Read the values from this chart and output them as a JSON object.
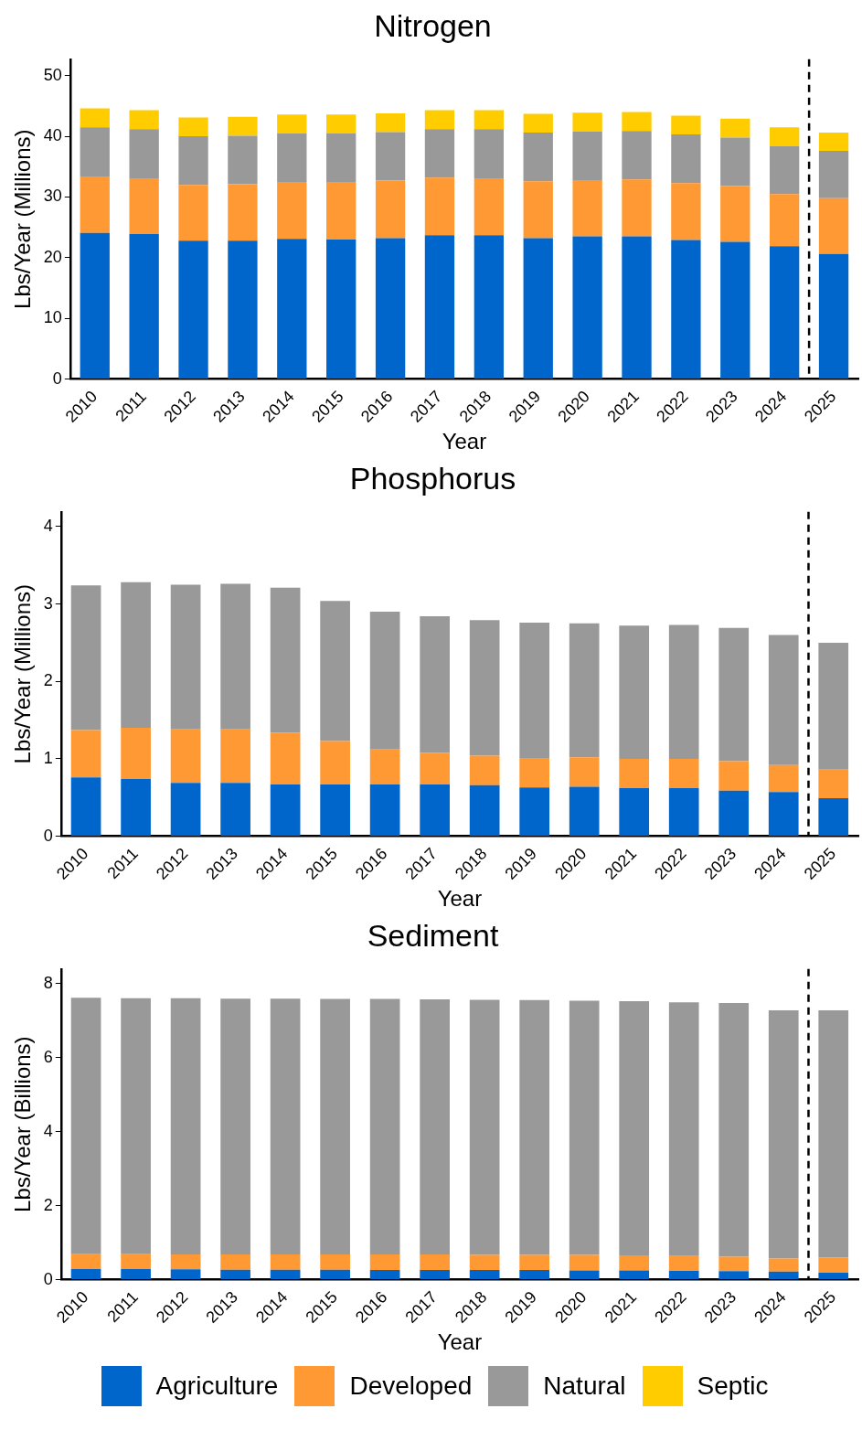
{
  "chart_data": [
    {
      "type": "bar",
      "title": "Nitrogen",
      "xlabel": "Year",
      "ylabel": "Lbs/Year (Millions)",
      "stacked": true,
      "legend": "bottom",
      "grid": false,
      "categories": [
        "2010",
        "2011",
        "2012",
        "2013",
        "2014",
        "2015",
        "2016",
        "2017",
        "2018",
        "2019",
        "2020",
        "2021",
        "2022",
        "2023",
        "2024",
        "2025"
      ],
      "ylim": [
        0,
        52.7
      ],
      "yticks": [
        0,
        10,
        20,
        30,
        40,
        50
      ],
      "series": [
        {
          "name": "Agriculture",
          "color": "#0066cc",
          "values": [
            24.1,
            23.9,
            22.8,
            22.8,
            23.1,
            23.0,
            23.2,
            23.7,
            23.7,
            23.2,
            23.5,
            23.5,
            22.9,
            22.6,
            21.9,
            20.6
          ]
        },
        {
          "name": "Developed",
          "color": "#ff9933",
          "values": [
            9.3,
            9.2,
            9.2,
            9.3,
            9.4,
            9.5,
            9.5,
            9.5,
            9.4,
            9.4,
            9.3,
            9.4,
            9.4,
            9.2,
            8.6,
            9.2
          ]
        },
        {
          "name": "Natural",
          "color": "#999999",
          "values": [
            8.1,
            8.1,
            8.0,
            8.0,
            8.0,
            8.0,
            8.0,
            8.0,
            8.1,
            8.0,
            8.0,
            8.0,
            8.0,
            8.0,
            7.9,
            7.8
          ]
        },
        {
          "name": "Septic",
          "color": "#ffcc00",
          "values": [
            3.1,
            3.1,
            3.1,
            3.1,
            3.1,
            3.1,
            3.1,
            3.1,
            3.1,
            3.1,
            3.1,
            3.1,
            3.1,
            3.1,
            3.1,
            3.0
          ]
        }
      ]
    },
    {
      "type": "bar",
      "title": "Phosphorus",
      "xlabel": "Year",
      "ylabel": "Lbs/Year (Millions)",
      "stacked": true,
      "grid": false,
      "categories": [
        "2010",
        "2011",
        "2012",
        "2013",
        "2014",
        "2015",
        "2016",
        "2017",
        "2018",
        "2019",
        "2020",
        "2021",
        "2022",
        "2023",
        "2024",
        "2025"
      ],
      "ylim": [
        0,
        4.19
      ],
      "yticks": [
        0,
        1,
        2,
        3,
        4
      ],
      "series": [
        {
          "color": "#0066cc",
          "values": [
            0.76,
            0.74,
            0.69,
            0.69,
            0.67,
            0.67,
            0.67,
            0.67,
            0.66,
            0.63,
            0.64,
            0.62,
            0.62,
            0.59,
            0.57,
            0.49
          ]
        },
        {
          "color": "#ff9933",
          "values": [
            0.61,
            0.66,
            0.69,
            0.69,
            0.67,
            0.56,
            0.45,
            0.41,
            0.38,
            0.38,
            0.38,
            0.38,
            0.38,
            0.38,
            0.35,
            0.37
          ]
        },
        {
          "color": "#999999",
          "values": [
            1.87,
            1.88,
            1.87,
            1.88,
            1.87,
            1.81,
            1.78,
            1.76,
            1.75,
            1.75,
            1.73,
            1.72,
            1.73,
            1.72,
            1.68,
            1.64
          ]
        }
      ]
    },
    {
      "type": "bar",
      "title": "Sediment",
      "xlabel": "Year",
      "ylabel": "Lbs/Year (Billions)",
      "stacked": true,
      "grid": false,
      "categories": [
        "2010",
        "2011",
        "2012",
        "2013",
        "2014",
        "2015",
        "2016",
        "2017",
        "2018",
        "2019",
        "2020",
        "2021",
        "2022",
        "2023",
        "2024",
        "2025"
      ],
      "ylim": [
        0,
        8.4
      ],
      "yticks": [
        0,
        2,
        4,
        6,
        8
      ],
      "series": [
        {
          "color": "#0066cc",
          "values": [
            0.29,
            0.29,
            0.28,
            0.27,
            0.27,
            0.27,
            0.26,
            0.26,
            0.26,
            0.26,
            0.25,
            0.25,
            0.24,
            0.23,
            0.22,
            0.19
          ]
        },
        {
          "color": "#ff9933",
          "values": [
            0.4,
            0.4,
            0.4,
            0.41,
            0.41,
            0.41,
            0.42,
            0.42,
            0.41,
            0.41,
            0.42,
            0.41,
            0.4,
            0.39,
            0.35,
            0.41
          ]
        },
        {
          "color": "#999999",
          "values": [
            6.93,
            6.92,
            6.93,
            6.92,
            6.92,
            6.91,
            6.91,
            6.9,
            6.9,
            6.89,
            6.87,
            6.87,
            6.86,
            6.86,
            6.71,
            6.68
          ]
        }
      ]
    }
  ]
}
